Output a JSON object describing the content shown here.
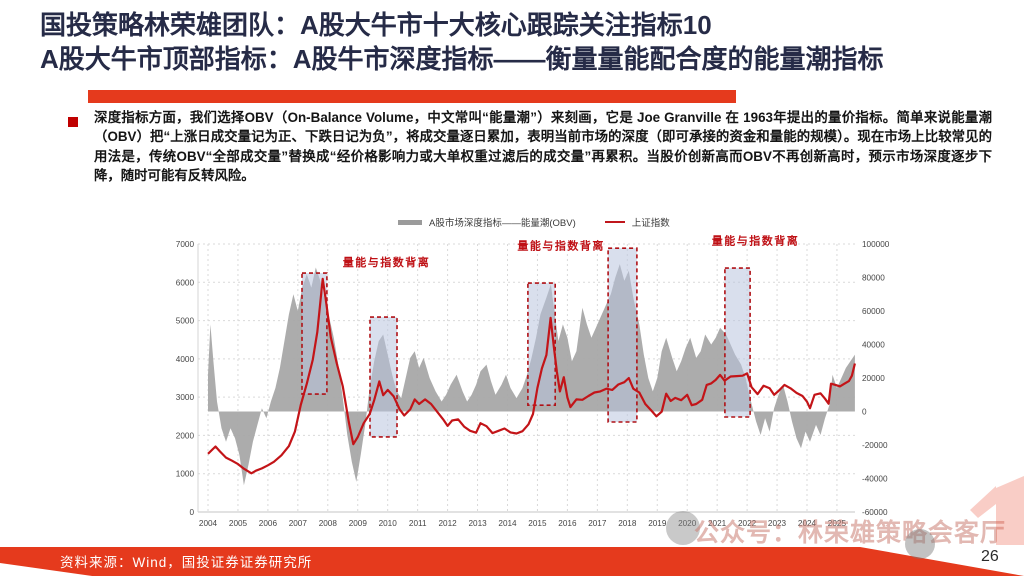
{
  "slide": {
    "title_line1": "国投策略林荣雄团队：A股大牛市十大核心跟踪关注指标10",
    "title_line2": "A股大牛市顶部指标：A股牛市深度指标——衡量量能配合度的能量潮指标",
    "bullet_text": "深度指标方面，我们选择OBV（On-Balance Volume，中文常叫“能量潮”）来刻画，它是 Joe Granville 在 1963年提出的量价指标。简单来说能量潮（OBV）把“上涨日成交量记为正、下跌日记为负”，将成交量逐日累加，表明当前市场的深度（即可承接的资金和量能的规模）。现在市场上比较常见的用法是，传统OBV“全部成交量”替换成“经价格影响力或大单权重过滤后的成交量”再累积。当股价创新高而OBV不再创新高时，预示市场深度逐步下降，随时可能有反转风险。",
    "footer": {
      "source_text": "资料来源：Wind，国投证券证券研究所",
      "page_number": "26"
    },
    "watermark_text": "公众号：林荣雄策略会客厅",
    "colors": {
      "accent_red": "#e53a1d",
      "title_navy": "#262b47",
      "crimson": "#c00000"
    }
  },
  "chart_data": {
    "type": "area",
    "title": "",
    "legend_position": "top-center",
    "grid": "dashed",
    "x_ticks": [
      2004,
      2005,
      2006,
      2007,
      2008,
      2009,
      2010,
      2011,
      2012,
      2013,
      2014,
      2015,
      2016,
      2017,
      2018,
      2019,
      2020,
      2021,
      2022,
      2023,
      2024,
      2025
    ],
    "left_axis": {
      "range": [
        0,
        7000
      ],
      "ticks": [
        0,
        1000,
        2000,
        3000,
        4000,
        5000,
        6000,
        7000
      ]
    },
    "right_axis": {
      "range": [
        -60000,
        100000
      ],
      "ticks": [
        -60000,
        -40000,
        -20000,
        0,
        20000,
        40000,
        60000,
        80000,
        100000
      ]
    },
    "series": [
      {
        "name": "A股市场深度指标——能量潮(OBV)",
        "type": "area",
        "axis": "right",
        "color": "#a8a8a8",
        "points": [
          [
            2004.0,
            22000
          ],
          [
            2004.08,
            52000
          ],
          [
            2004.18,
            30000
          ],
          [
            2004.3,
            6000
          ],
          [
            2004.45,
            -10000
          ],
          [
            2004.6,
            -18000
          ],
          [
            2004.75,
            -10000
          ],
          [
            2004.9,
            -16000
          ],
          [
            2005.05,
            -26000
          ],
          [
            2005.2,
            -44000
          ],
          [
            2005.35,
            -32000
          ],
          [
            2005.5,
            -18000
          ],
          [
            2005.65,
            -8000
          ],
          [
            2005.8,
            2000
          ],
          [
            2005.95,
            -4000
          ],
          [
            2006.1,
            6000
          ],
          [
            2006.25,
            14000
          ],
          [
            2006.4,
            26000
          ],
          [
            2006.55,
            42000
          ],
          [
            2006.7,
            58000
          ],
          [
            2006.85,
            70000
          ],
          [
            2007.0,
            60000
          ],
          [
            2007.15,
            74000
          ],
          [
            2007.3,
            82000
          ],
          [
            2007.45,
            74000
          ],
          [
            2007.6,
            86000
          ],
          [
            2007.75,
            78000
          ],
          [
            2007.9,
            66000
          ],
          [
            2008.05,
            56000
          ],
          [
            2008.2,
            44000
          ],
          [
            2008.35,
            28000
          ],
          [
            2008.5,
            8000
          ],
          [
            2008.65,
            -14000
          ],
          [
            2008.8,
            -30000
          ],
          [
            2008.95,
            -42000
          ],
          [
            2009.1,
            -26000
          ],
          [
            2009.25,
            -8000
          ],
          [
            2009.4,
            14000
          ],
          [
            2009.55,
            30000
          ],
          [
            2009.7,
            42000
          ],
          [
            2009.85,
            46000
          ],
          [
            2010.0,
            34000
          ],
          [
            2010.15,
            22000
          ],
          [
            2010.3,
            12000
          ],
          [
            2010.45,
            8000
          ],
          [
            2010.6,
            20000
          ],
          [
            2010.75,
            32000
          ],
          [
            2010.9,
            36000
          ],
          [
            2011.05,
            26000
          ],
          [
            2011.2,
            32000
          ],
          [
            2011.4,
            20000
          ],
          [
            2011.6,
            12000
          ],
          [
            2011.8,
            6000
          ],
          [
            2011.95,
            10000
          ],
          [
            2012.1,
            16000
          ],
          [
            2012.3,
            22000
          ],
          [
            2012.5,
            12000
          ],
          [
            2012.65,
            6000
          ],
          [
            2012.8,
            10000
          ],
          [
            2012.95,
            16000
          ],
          [
            2013.1,
            24000
          ],
          [
            2013.3,
            28000
          ],
          [
            2013.45,
            18000
          ],
          [
            2013.6,
            10000
          ],
          [
            2013.8,
            16000
          ],
          [
            2013.95,
            22000
          ],
          [
            2014.1,
            14000
          ],
          [
            2014.3,
            8000
          ],
          [
            2014.5,
            14000
          ],
          [
            2014.65,
            22000
          ],
          [
            2014.8,
            32000
          ],
          [
            2014.95,
            44000
          ],
          [
            2015.1,
            58000
          ],
          [
            2015.3,
            68000
          ],
          [
            2015.45,
            76000
          ],
          [
            2015.55,
            62000
          ],
          [
            2015.7,
            42000
          ],
          [
            2015.85,
            52000
          ],
          [
            2016.0,
            44000
          ],
          [
            2016.15,
            30000
          ],
          [
            2016.3,
            36000
          ],
          [
            2016.5,
            62000
          ],
          [
            2016.65,
            52000
          ],
          [
            2016.8,
            44000
          ],
          [
            2016.95,
            50000
          ],
          [
            2017.1,
            56000
          ],
          [
            2017.3,
            64000
          ],
          [
            2017.45,
            70000
          ],
          [
            2017.6,
            80000
          ],
          [
            2017.75,
            88000
          ],
          [
            2017.9,
            78000
          ],
          [
            2018.05,
            84000
          ],
          [
            2018.2,
            68000
          ],
          [
            2018.4,
            52000
          ],
          [
            2018.55,
            34000
          ],
          [
            2018.7,
            20000
          ],
          [
            2018.85,
            12000
          ],
          [
            2019.0,
            20000
          ],
          [
            2019.15,
            36000
          ],
          [
            2019.3,
            44000
          ],
          [
            2019.5,
            32000
          ],
          [
            2019.65,
            24000
          ],
          [
            2019.8,
            30000
          ],
          [
            2019.95,
            38000
          ],
          [
            2020.1,
            44000
          ],
          [
            2020.3,
            32000
          ],
          [
            2020.45,
            36000
          ],
          [
            2020.6,
            46000
          ],
          [
            2020.8,
            40000
          ],
          [
            2020.95,
            44000
          ],
          [
            2021.1,
            50000
          ],
          [
            2021.3,
            46000
          ],
          [
            2021.45,
            40000
          ],
          [
            2021.6,
            34000
          ],
          [
            2021.8,
            28000
          ],
          [
            2021.95,
            20000
          ],
          [
            2022.1,
            8000
          ],
          [
            2022.3,
            -6000
          ],
          [
            2022.45,
            -14000
          ],
          [
            2022.6,
            -4000
          ],
          [
            2022.75,
            -12000
          ],
          [
            2022.9,
            2000
          ],
          [
            2023.05,
            10000
          ],
          [
            2023.2,
            16000
          ],
          [
            2023.35,
            6000
          ],
          [
            2023.5,
            -6000
          ],
          [
            2023.65,
            -16000
          ],
          [
            2023.8,
            -22000
          ],
          [
            2023.95,
            -12000
          ],
          [
            2024.1,
            -18000
          ],
          [
            2024.3,
            -8000
          ],
          [
            2024.45,
            -14000
          ],
          [
            2024.6,
            -4000
          ],
          [
            2024.75,
            4000
          ],
          [
            2024.85,
            22000
          ],
          [
            2025.0,
            14000
          ],
          [
            2025.15,
            20000
          ],
          [
            2025.3,
            26000
          ],
          [
            2025.45,
            30000
          ],
          [
            2025.6,
            34000
          ]
        ]
      },
      {
        "name": "上证指数",
        "type": "line",
        "axis": "left",
        "color": "#c31418",
        "points": [
          [
            2004.0,
            1520
          ],
          [
            2004.25,
            1710
          ],
          [
            2004.4,
            1580
          ],
          [
            2004.6,
            1420
          ],
          [
            2004.8,
            1340
          ],
          [
            2005.0,
            1250
          ],
          [
            2005.2,
            1130
          ],
          [
            2005.45,
            1010
          ],
          [
            2005.6,
            1080
          ],
          [
            2005.8,
            1140
          ],
          [
            2006.0,
            1220
          ],
          [
            2006.2,
            1310
          ],
          [
            2006.45,
            1480
          ],
          [
            2006.7,
            1720
          ],
          [
            2006.9,
            2100
          ],
          [
            2007.1,
            2800
          ],
          [
            2007.3,
            3350
          ],
          [
            2007.5,
            3980
          ],
          [
            2007.65,
            4700
          ],
          [
            2007.83,
            6090
          ],
          [
            2007.95,
            5450
          ],
          [
            2008.1,
            4560
          ],
          [
            2008.3,
            3880
          ],
          [
            2008.5,
            3280
          ],
          [
            2008.7,
            2350
          ],
          [
            2008.85,
            1770
          ],
          [
            2009.0,
            1960
          ],
          [
            2009.2,
            2320
          ],
          [
            2009.4,
            2560
          ],
          [
            2009.55,
            2920
          ],
          [
            2009.72,
            3410
          ],
          [
            2009.85,
            3050
          ],
          [
            2010.0,
            3190
          ],
          [
            2010.2,
            3020
          ],
          [
            2010.4,
            2680
          ],
          [
            2010.55,
            2520
          ],
          [
            2010.75,
            2680
          ],
          [
            2010.9,
            2940
          ],
          [
            2011.05,
            2820
          ],
          [
            2011.25,
            2940
          ],
          [
            2011.45,
            2820
          ],
          [
            2011.65,
            2620
          ],
          [
            2011.85,
            2420
          ],
          [
            2012.0,
            2250
          ],
          [
            2012.15,
            2390
          ],
          [
            2012.35,
            2420
          ],
          [
            2012.55,
            2230
          ],
          [
            2012.75,
            2120
          ],
          [
            2012.95,
            2070
          ],
          [
            2013.1,
            2320
          ],
          [
            2013.3,
            2240
          ],
          [
            2013.5,
            2060
          ],
          [
            2013.7,
            2120
          ],
          [
            2013.9,
            2180
          ],
          [
            2014.1,
            2080
          ],
          [
            2014.3,
            2050
          ],
          [
            2014.5,
            2110
          ],
          [
            2014.7,
            2290
          ],
          [
            2014.85,
            2560
          ],
          [
            2015.0,
            3240
          ],
          [
            2015.15,
            3750
          ],
          [
            2015.3,
            4100
          ],
          [
            2015.44,
            5070
          ],
          [
            2015.55,
            4300
          ],
          [
            2015.65,
            3660
          ],
          [
            2015.75,
            3150
          ],
          [
            2015.88,
            3520
          ],
          [
            2016.0,
            2990
          ],
          [
            2016.1,
            2740
          ],
          [
            2016.3,
            2940
          ],
          [
            2016.5,
            2930
          ],
          [
            2016.7,
            3030
          ],
          [
            2016.9,
            3120
          ],
          [
            2017.1,
            3150
          ],
          [
            2017.3,
            3220
          ],
          [
            2017.5,
            3190
          ],
          [
            2017.7,
            3330
          ],
          [
            2017.9,
            3390
          ],
          [
            2018.05,
            3500
          ],
          [
            2018.2,
            3220
          ],
          [
            2018.4,
            3120
          ],
          [
            2018.6,
            2820
          ],
          [
            2018.8,
            2650
          ],
          [
            2018.97,
            2500
          ],
          [
            2019.15,
            2620
          ],
          [
            2019.3,
            3090
          ],
          [
            2019.45,
            2900
          ],
          [
            2019.6,
            2980
          ],
          [
            2019.8,
            2920
          ],
          [
            2020.0,
            3060
          ],
          [
            2020.15,
            2790
          ],
          [
            2020.3,
            2820
          ],
          [
            2020.5,
            2930
          ],
          [
            2020.65,
            3320
          ],
          [
            2020.8,
            3360
          ],
          [
            2020.95,
            3450
          ],
          [
            2021.1,
            3580
          ],
          [
            2021.25,
            3430
          ],
          [
            2021.45,
            3540
          ],
          [
            2021.65,
            3550
          ],
          [
            2021.85,
            3560
          ],
          [
            2022.0,
            3620
          ],
          [
            2022.15,
            3260
          ],
          [
            2022.35,
            3080
          ],
          [
            2022.55,
            3300
          ],
          [
            2022.75,
            3230
          ],
          [
            2022.9,
            3060
          ],
          [
            2023.05,
            3160
          ],
          [
            2023.25,
            3320
          ],
          [
            2023.45,
            3230
          ],
          [
            2023.65,
            3110
          ],
          [
            2023.85,
            3030
          ],
          [
            2024.0,
            2880
          ],
          [
            2024.1,
            2710
          ],
          [
            2024.25,
            3060
          ],
          [
            2024.45,
            3100
          ],
          [
            2024.6,
            2960
          ],
          [
            2024.72,
            2830
          ],
          [
            2024.8,
            3350
          ],
          [
            2024.95,
            3320
          ],
          [
            2025.1,
            3280
          ],
          [
            2025.25,
            3350
          ],
          [
            2025.4,
            3420
          ],
          [
            2025.5,
            3560
          ],
          [
            2025.6,
            3880
          ]
        ]
      }
    ],
    "annotations": {
      "label": "量能与指数背离",
      "label_color": "#bf1116",
      "box_fill": "rgba(186,196,222,0.55)",
      "box_border": "#b01116",
      "boxes": [
        [
          2007.14,
          3080,
          2007.97,
          6240
        ],
        [
          2009.41,
          1960,
          2010.31,
          5090
        ],
        [
          2014.68,
          2790,
          2015.59,
          5980
        ],
        [
          2017.36,
          2350,
          2018.32,
          6890
        ],
        [
          2021.26,
          2480,
          2022.1,
          6370
        ]
      ],
      "label_positions": [
        [
          2008.5,
          6420
        ],
        [
          2014.33,
          6860
        ],
        [
          2020.82,
          6990
        ]
      ]
    }
  }
}
